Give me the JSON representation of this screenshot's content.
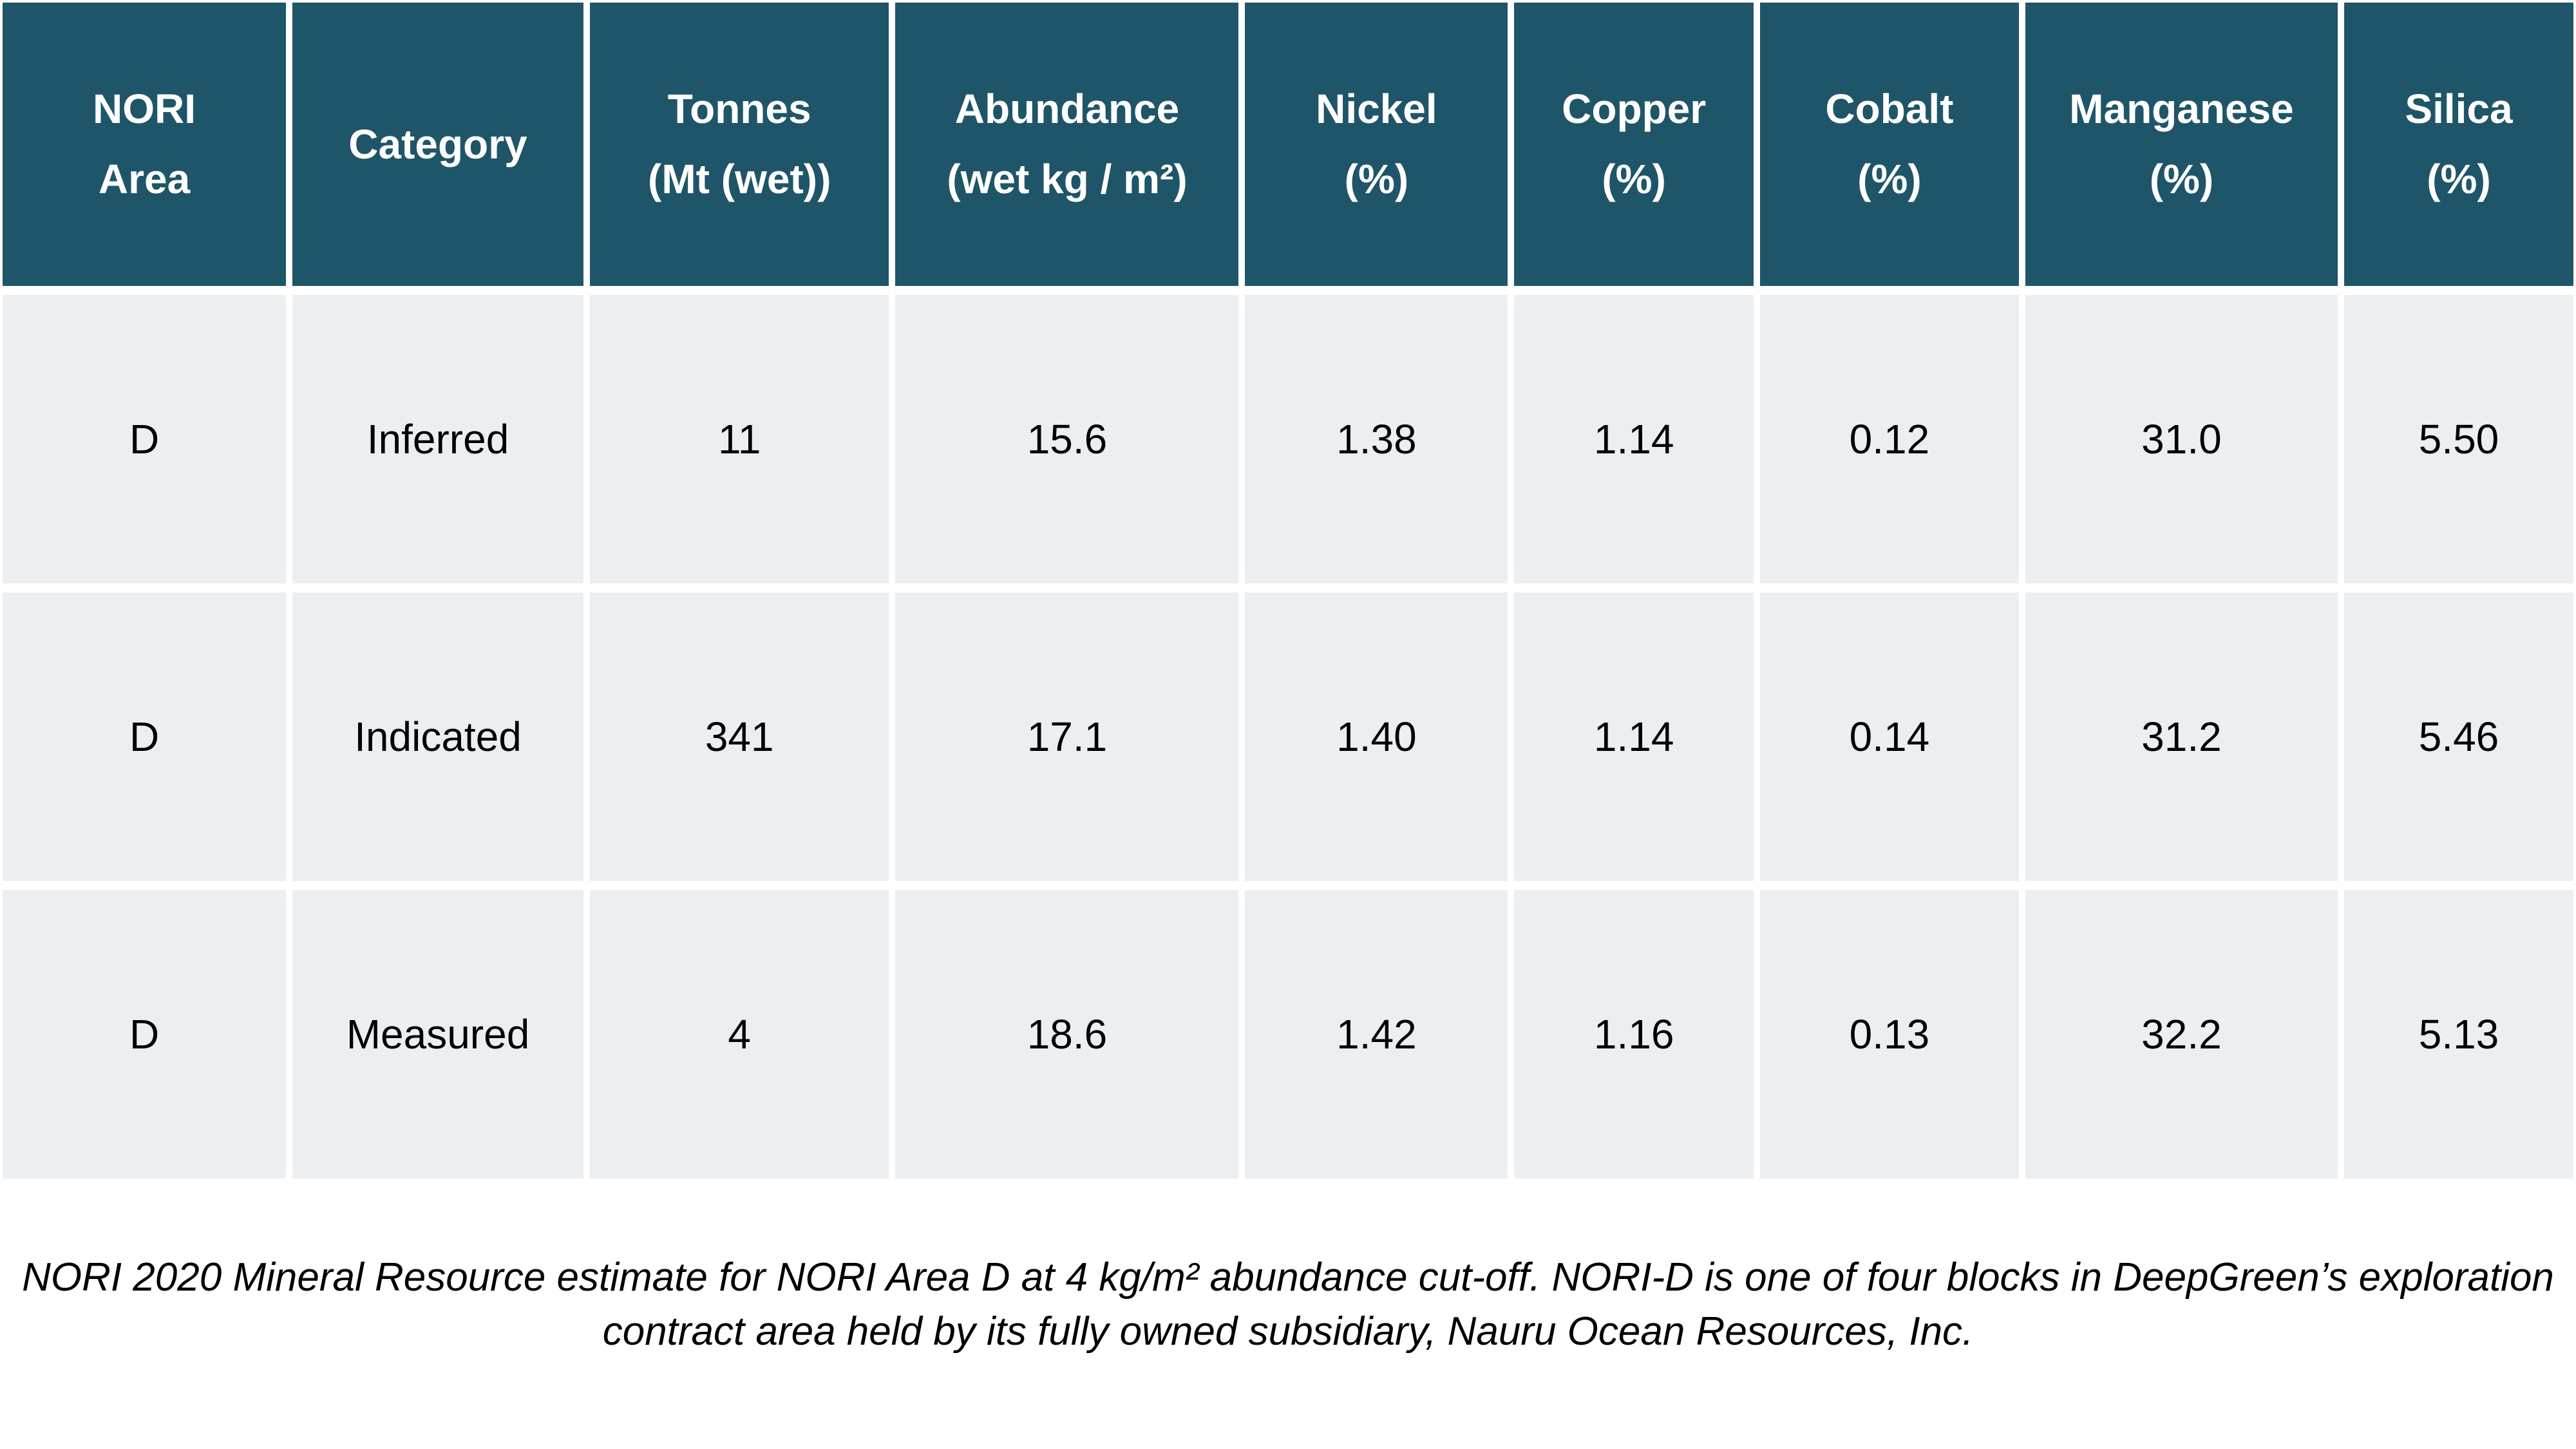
{
  "colors": {
    "header_bg": "#1F5568",
    "header_text": "#FFFFFF",
    "row_bg": "#EBEFF2",
    "body_text": "#000000",
    "separator": "#FFFFFF"
  },
  "table": {
    "headers": [
      {
        "lines": [
          "NORI",
          "Area"
        ]
      },
      {
        "lines": [
          "Category"
        ]
      },
      {
        "lines": [
          "Tonnes",
          "(Mt (wet))"
        ]
      },
      {
        "lines": [
          "Abundance",
          "(wet kg / m²)"
        ]
      },
      {
        "lines": [
          "Nickel",
          "(%)"
        ]
      },
      {
        "lines": [
          "Copper",
          "(%)"
        ]
      },
      {
        "lines": [
          "Cobalt",
          "(%)"
        ]
      },
      {
        "lines": [
          "Manganese",
          "(%)"
        ]
      },
      {
        "lines": [
          "Silica",
          "(%)"
        ]
      }
    ],
    "rows": [
      [
        "D",
        "Inferred",
        "11",
        "15.6",
        "1.38",
        "1.14",
        "0.12",
        "31.0",
        "5.50"
      ],
      [
        "D",
        "Indicated",
        "341",
        "17.1",
        "1.40",
        "1.14",
        "0.14",
        "31.2",
        "5.46"
      ],
      [
        "D",
        "Measured",
        "4",
        "18.6",
        "1.42",
        "1.16",
        "0.13",
        "32.2",
        "5.13"
      ]
    ]
  },
  "caption": {
    "text": "NORI 2020 Mineral Resource estimate for NORI Area D at 4 kg/m² abundance cut-off. NORI-D is one of four blocks in DeepGreen’s exploration contract area held by its fully owned subsidiary, Nauru Ocean Resources, Inc."
  }
}
